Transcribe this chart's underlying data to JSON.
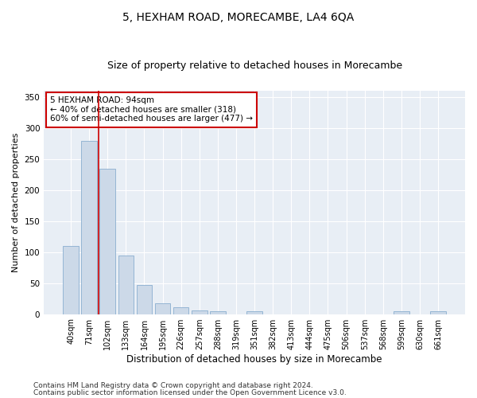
{
  "title": "5, HEXHAM ROAD, MORECAMBE, LA4 6QA",
  "subtitle": "Size of property relative to detached houses in Morecambe",
  "xlabel": "Distribution of detached houses by size in Morecambe",
  "ylabel": "Number of detached properties",
  "categories": [
    "40sqm",
    "71sqm",
    "102sqm",
    "133sqm",
    "164sqm",
    "195sqm",
    "226sqm",
    "257sqm",
    "288sqm",
    "319sqm",
    "351sqm",
    "382sqm",
    "413sqm",
    "444sqm",
    "475sqm",
    "506sqm",
    "537sqm",
    "568sqm",
    "599sqm",
    "630sqm",
    "661sqm"
  ],
  "values": [
    110,
    280,
    235,
    95,
    47,
    18,
    11,
    6,
    5,
    0,
    4,
    0,
    0,
    0,
    0,
    0,
    0,
    0,
    4,
    0,
    4
  ],
  "bar_color": "#ccd9e8",
  "bar_edge_color": "#8aaecf",
  "vline_color": "#cc0000",
  "vline_x_index": 1,
  "annotation_text": "5 HEXHAM ROAD: 94sqm\n← 40% of detached houses are smaller (318)\n60% of semi-detached houses are larger (477) →",
  "annotation_box_color": "#ffffff",
  "annotation_box_edge_color": "#cc0000",
  "ylim": [
    0,
    360
  ],
  "yticks": [
    0,
    50,
    100,
    150,
    200,
    250,
    300,
    350
  ],
  "footer_line1": "Contains HM Land Registry data © Crown copyright and database right 2024.",
  "footer_line2": "Contains public sector information licensed under the Open Government Licence v3.0.",
  "bg_color": "#e8eef5",
  "fig_bg_color": "#ffffff",
  "title_fontsize": 10,
  "subtitle_fontsize": 9,
  "tick_fontsize": 7,
  "xlabel_fontsize": 8.5,
  "ylabel_fontsize": 8,
  "annotation_fontsize": 7.5,
  "footer_fontsize": 6.5
}
